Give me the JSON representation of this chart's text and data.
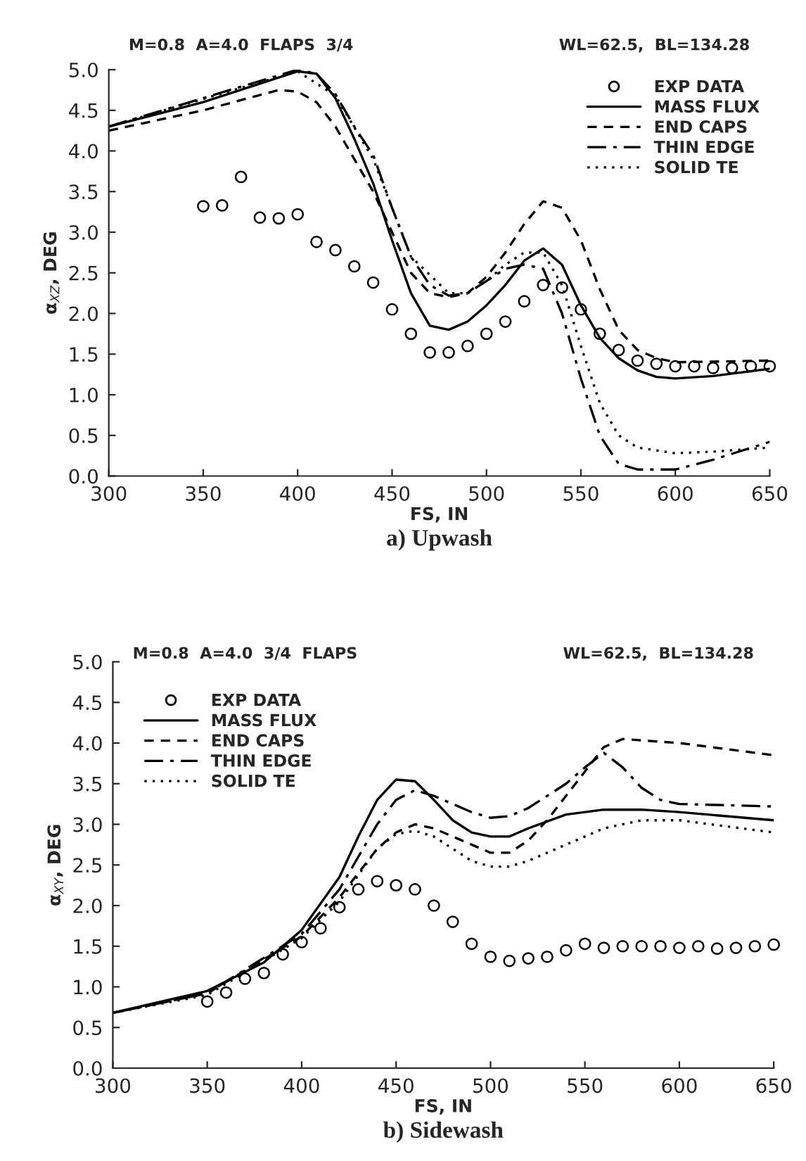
{
  "chart_data": [
    {
      "type": "line",
      "title": "a) Upwash",
      "xlabel": "FS, IN",
      "ylabel": "α$_{XZ}$, DEG",
      "annotations": [
        "M=0.8  A=4.0  FLAPS  3/4",
        "WL=62.5,  BL=134.28"
      ],
      "xlim": [
        300,
        650
      ],
      "xticks": [
        300,
        350,
        400,
        450,
        500,
        550,
        600,
        650
      ],
      "ylim": [
        0,
        5
      ],
      "yticks": [
        {
          "value": 0,
          "label": "0.0"
        },
        0.5,
        {
          "value": 1,
          "label": "1.0"
        },
        1.5,
        {
          "value": 2,
          "label": "2.0"
        },
        2.5,
        {
          "value": 3,
          "label": "3.0"
        },
        3.5,
        {
          "value": 4,
          "label": "4.0"
        },
        4.5,
        {
          "value": 5,
          "label": "5.0"
        }
      ],
      "grid": false,
      "legend": "top right",
      "series": [
        {
          "name": "EXP DATA",
          "type": "scatter",
          "marker": "circle",
          "color": "#000000",
          "x": [
            350,
            360,
            370,
            380,
            390,
            400,
            410,
            420,
            430,
            440,
            450,
            460,
            470,
            480,
            490,
            500,
            510,
            520,
            530,
            540,
            550,
            560,
            570,
            580,
            590,
            600,
            610,
            620,
            630,
            640,
            650
          ],
          "values": [
            3.32,
            3.33,
            3.68,
            3.18,
            3.17,
            3.22,
            2.88,
            2.78,
            2.58,
            2.38,
            2.05,
            1.75,
            1.52,
            1.52,
            1.6,
            1.75,
            1.9,
            2.15,
            2.35,
            2.32,
            2.05,
            1.75,
            1.55,
            1.42,
            1.38,
            1.35,
            1.35,
            1.33,
            1.33,
            1.35,
            1.35
          ]
        },
        {
          "name": "MASS FLUX",
          "type": "line",
          "line_style": "solid",
          "color": "#000000",
          "x": [
            300,
            350,
            400,
            410,
            420,
            430,
            440,
            450,
            460,
            470,
            480,
            490,
            500,
            510,
            520,
            530,
            540,
            550,
            560,
            570,
            580,
            590,
            600,
            620,
            650
          ],
          "values": [
            4.3,
            4.6,
            4.98,
            4.95,
            4.65,
            4.15,
            3.6,
            2.9,
            2.25,
            1.85,
            1.8,
            1.9,
            2.1,
            2.35,
            2.65,
            2.8,
            2.6,
            2.1,
            1.7,
            1.45,
            1.3,
            1.22,
            1.2,
            1.23,
            1.32
          ]
        },
        {
          "name": "END CAPS",
          "type": "line",
          "line_style": "dashed",
          "color": "#000000",
          "x": [
            300,
            350,
            390,
            400,
            410,
            420,
            430,
            440,
            450,
            460,
            470,
            480,
            490,
            500,
            510,
            520,
            530,
            540,
            550,
            560,
            570,
            580,
            590,
            600,
            650
          ],
          "values": [
            4.25,
            4.5,
            4.75,
            4.73,
            4.6,
            4.3,
            3.9,
            3.5,
            3.0,
            2.5,
            2.25,
            2.2,
            2.25,
            2.45,
            2.75,
            3.1,
            3.38,
            3.3,
            2.9,
            2.3,
            1.8,
            1.55,
            1.45,
            1.4,
            1.42
          ]
        },
        {
          "name": "THIN EDGE",
          "type": "line",
          "line_style": "dashdot",
          "color": "#000000",
          "x": [
            300,
            400,
            410,
            420,
            430,
            440,
            450,
            460,
            470,
            480,
            490,
            500,
            510,
            520,
            530,
            540,
            550,
            560,
            570,
            580,
            600,
            620,
            650
          ],
          "values": [
            4.3,
            5.0,
            4.95,
            4.7,
            4.3,
            3.95,
            3.3,
            2.7,
            2.35,
            2.22,
            2.25,
            2.4,
            2.55,
            2.6,
            2.55,
            2.0,
            1.2,
            0.5,
            0.15,
            0.08,
            0.08,
            0.2,
            0.42
          ]
        },
        {
          "name": "SOLID TE",
          "type": "line",
          "line_style": "dotted",
          "color": "#000000",
          "x": [
            300,
            400,
            420,
            440,
            460,
            480,
            490,
            500,
            510,
            520,
            530,
            540,
            550,
            560,
            570,
            580,
            600,
            620,
            650
          ],
          "values": [
            4.3,
            4.98,
            4.68,
            3.9,
            2.7,
            2.25,
            2.25,
            2.4,
            2.6,
            2.75,
            2.75,
            2.35,
            1.6,
            0.9,
            0.5,
            0.35,
            0.28,
            0.3,
            0.35
          ]
        }
      ]
    },
    {
      "type": "line",
      "title": "b) Sidewash",
      "xlabel": "FS, IN",
      "ylabel": "α$_{XY}$, DEG",
      "annotations": [
        "M=0.8  A=4.0  3/4  FLAPS",
        "WL=62.5,  BL=134.28"
      ],
      "xlim": [
        300,
        650
      ],
      "xticks": [
        300,
        350,
        400,
        450,
        500,
        550,
        600,
        650
      ],
      "ylim": [
        0,
        5
      ],
      "yticks": [
        {
          "value": 0,
          "label": "0.0"
        },
        0.5,
        {
          "value": 1,
          "label": "1.0"
        },
        1.5,
        {
          "value": 2,
          "label": "2.0"
        },
        2.5,
        {
          "value": 3,
          "label": "3.0"
        },
        3.5,
        {
          "value": 4,
          "label": "4.0"
        },
        4.5,
        {
          "value": 5,
          "label": "5.0"
        }
      ],
      "grid": false,
      "legend": "top left",
      "series": [
        {
          "name": "EXP DATA",
          "type": "scatter",
          "marker": "circle",
          "color": "#000000",
          "x": [
            350,
            360,
            370,
            380,
            390,
            400,
            410,
            420,
            430,
            440,
            450,
            460,
            470,
            480,
            490,
            500,
            510,
            520,
            530,
            540,
            550,
            560,
            570,
            580,
            590,
            600,
            610,
            620,
            630,
            640,
            650
          ],
          "values": [
            0.82,
            0.93,
            1.1,
            1.17,
            1.4,
            1.55,
            1.72,
            1.98,
            2.2,
            2.3,
            2.25,
            2.2,
            2.0,
            1.8,
            1.53,
            1.37,
            1.32,
            1.35,
            1.37,
            1.45,
            1.53,
            1.48,
            1.5,
            1.5,
            1.5,
            1.48,
            1.5,
            1.47,
            1.48,
            1.5,
            1.52
          ]
        },
        {
          "name": "MASS FLUX",
          "type": "line",
          "line_style": "solid",
          "color": "#000000",
          "x": [
            300,
            350,
            380,
            400,
            420,
            430,
            440,
            450,
            460,
            470,
            480,
            490,
            500,
            510,
            520,
            540,
            560,
            580,
            600,
            650
          ],
          "values": [
            0.68,
            0.95,
            1.3,
            1.7,
            2.35,
            2.85,
            3.3,
            3.55,
            3.53,
            3.3,
            3.05,
            2.9,
            2.85,
            2.85,
            2.95,
            3.12,
            3.18,
            3.18,
            3.15,
            3.05
          ]
        },
        {
          "name": "END CAPS",
          "type": "line",
          "line_style": "dashed",
          "color": "#000000",
          "x": [
            300,
            350,
            400,
            420,
            440,
            450,
            460,
            470,
            480,
            490,
            500,
            510,
            520,
            530,
            540,
            550,
            560,
            570,
            600,
            650
          ],
          "values": [
            0.68,
            0.92,
            1.62,
            2.1,
            2.7,
            2.9,
            3.0,
            2.95,
            2.85,
            2.75,
            2.65,
            2.65,
            2.8,
            3.05,
            3.35,
            3.65,
            3.95,
            4.05,
            4.0,
            3.85
          ]
        },
        {
          "name": "THIN EDGE",
          "type": "line",
          "line_style": "dashdot",
          "color": "#000000",
          "x": [
            300,
            350,
            400,
            420,
            440,
            450,
            460,
            470,
            480,
            490,
            500,
            510,
            520,
            530,
            540,
            550,
            560,
            570,
            580,
            590,
            600,
            650
          ],
          "values": [
            0.68,
            0.92,
            1.65,
            2.2,
            3.0,
            3.3,
            3.42,
            3.35,
            3.25,
            3.15,
            3.08,
            3.1,
            3.2,
            3.35,
            3.5,
            3.7,
            3.88,
            3.7,
            3.45,
            3.3,
            3.25,
            3.22
          ]
        },
        {
          "name": "SOLID TE",
          "type": "line",
          "line_style": "dotted",
          "color": "#000000",
          "x": [
            300,
            350,
            400,
            420,
            440,
            450,
            460,
            470,
            480,
            490,
            500,
            510,
            520,
            540,
            560,
            580,
            600,
            650
          ],
          "values": [
            0.68,
            0.9,
            1.6,
            2.05,
            2.7,
            2.88,
            2.92,
            2.85,
            2.7,
            2.55,
            2.48,
            2.48,
            2.55,
            2.75,
            2.95,
            3.05,
            3.05,
            2.9
          ]
        }
      ]
    }
  ]
}
